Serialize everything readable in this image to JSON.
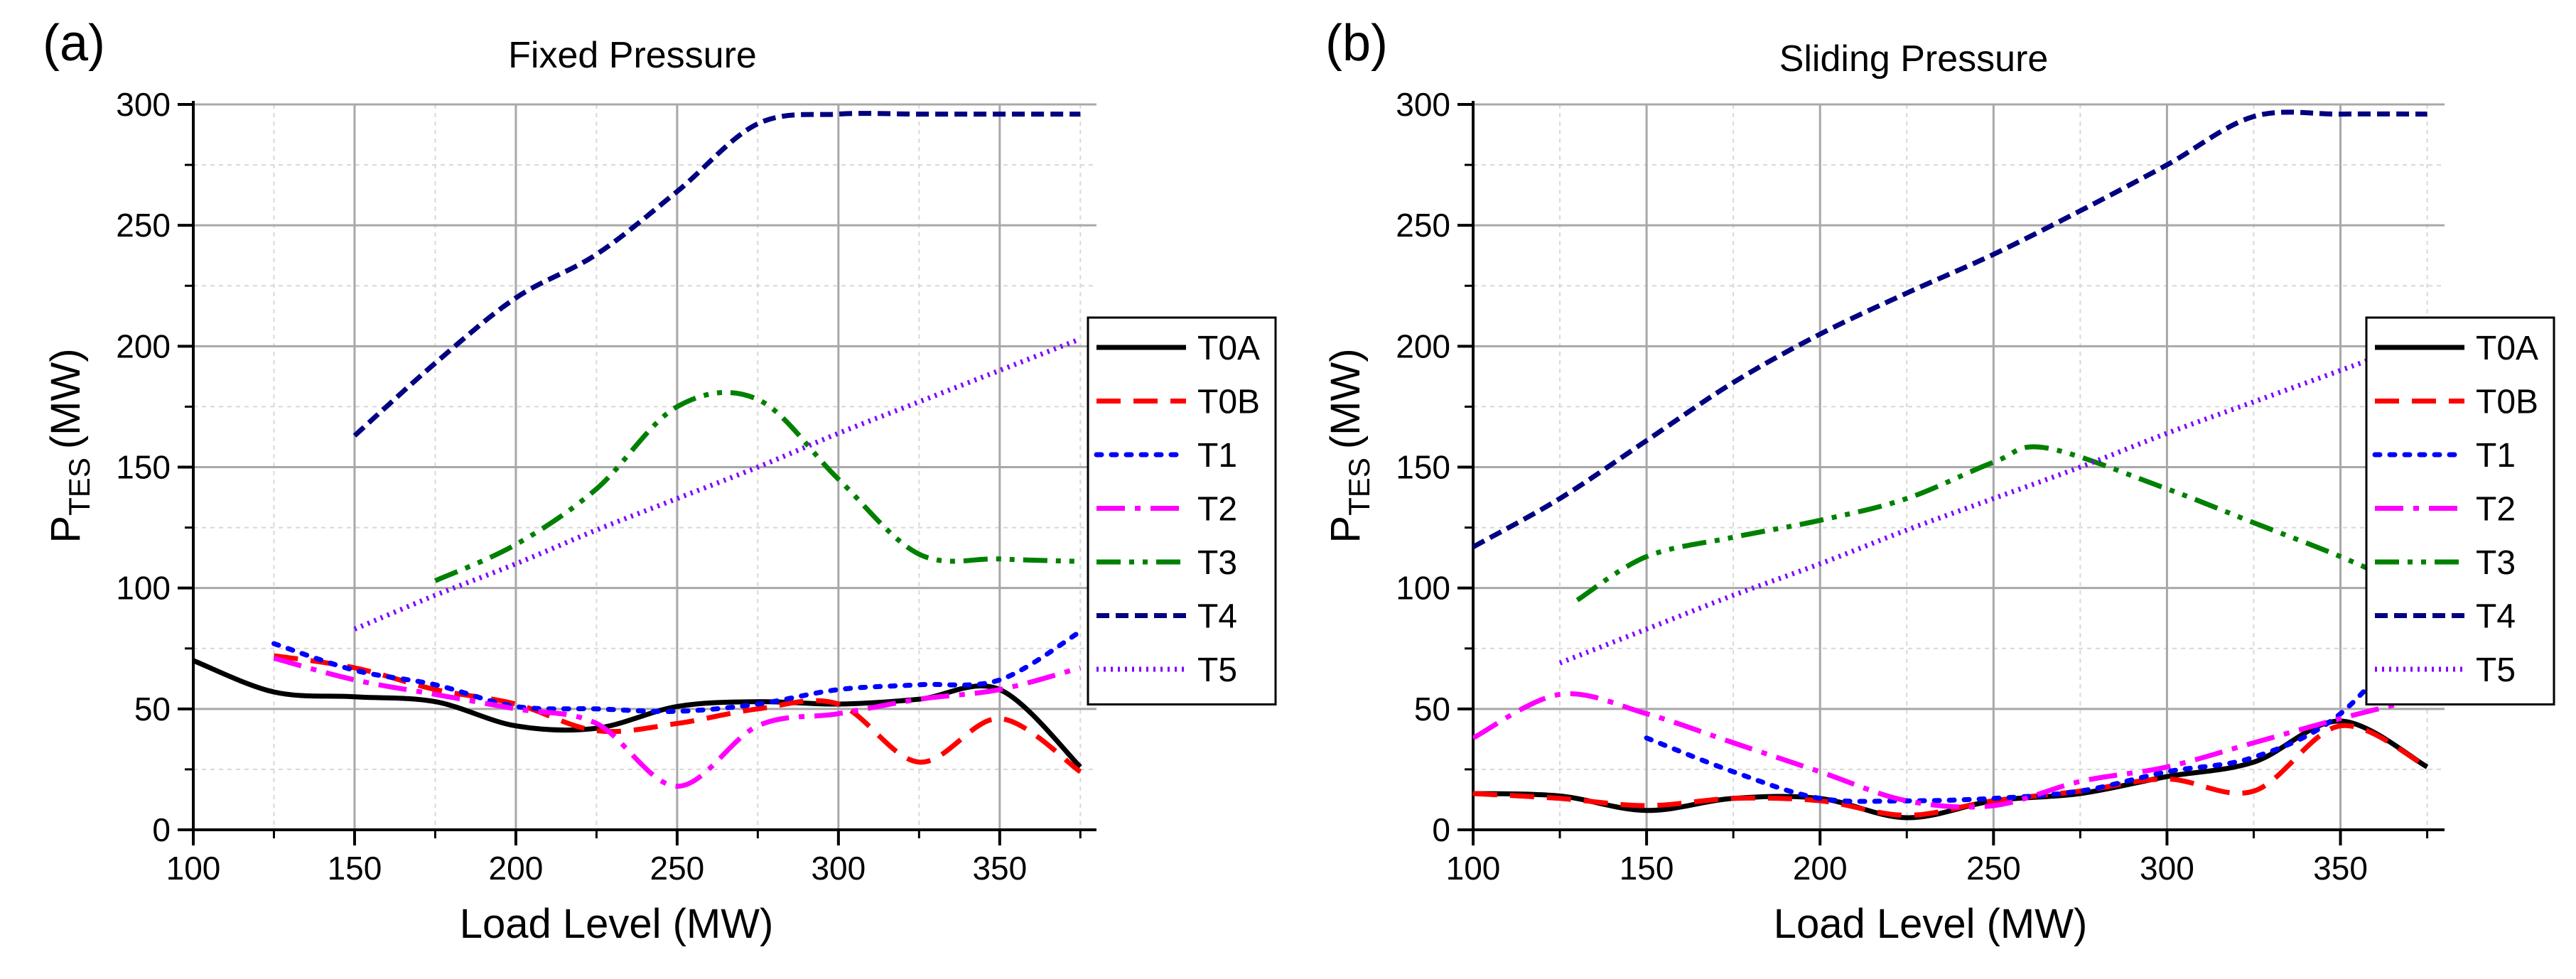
{
  "colors": {
    "T0A": "#000000",
    "T0B": "#ff0000",
    "T1": "#0000ff",
    "T2": "#ff00ff",
    "T3": "#008000",
    "T4": "#000080",
    "T5": "#8000ff",
    "grid_major": "#a8a8a8",
    "grid_minor": "#d8d8d8"
  },
  "chart_data": [
    {
      "type": "line",
      "panel_label": "(a)",
      "title": "Fixed Pressure",
      "xlabel": "Load Level (MW)",
      "ylabel_main": "P",
      "ylabel_sub": "TES",
      "ylabel_unit": "(MW)",
      "xlim": [
        100,
        380
      ],
      "ylim": [
        0,
        300
      ],
      "xticks": [
        100,
        150,
        200,
        250,
        300,
        350
      ],
      "yticks": [
        0,
        50,
        100,
        150,
        200,
        250,
        300
      ],
      "grid": true,
      "legend_position": "right",
      "series": [
        {
          "name": "T0A",
          "x": [
            100,
            125,
            150,
            175,
            200,
            225,
            250,
            275,
            300,
            325,
            350,
            375
          ],
          "y": [
            70,
            57,
            55,
            53,
            43,
            42,
            51,
            53,
            52,
            54,
            58,
            26
          ]
        },
        {
          "name": "T0B",
          "x": [
            125,
            150,
            175,
            200,
            225,
            250,
            275,
            300,
            325,
            350,
            375
          ],
          "y": [
            72,
            67,
            58,
            52,
            41,
            44,
            50,
            52,
            28,
            46,
            24
          ]
        },
        {
          "name": "T1",
          "x": [
            125,
            150,
            175,
            200,
            225,
            250,
            275,
            300,
            325,
            350,
            375
          ],
          "y": [
            77,
            66,
            60,
            51,
            50,
            49,
            52,
            58,
            60,
            62,
            82
          ]
        },
        {
          "name": "T2",
          "x": [
            125,
            150,
            175,
            200,
            225,
            250,
            275,
            300,
            325,
            350,
            375
          ],
          "y": [
            71,
            62,
            56,
            50,
            44,
            18,
            43,
            48,
            54,
            58,
            67
          ]
        },
        {
          "name": "T3",
          "x": [
            175,
            200,
            225,
            250,
            275,
            300,
            325,
            350,
            375
          ],
          "y": [
            103,
            118,
            141,
            175,
            178,
            145,
            114,
            112,
            111
          ]
        },
        {
          "name": "T4",
          "x": [
            150,
            175,
            200,
            225,
            250,
            275,
            300,
            325,
            350,
            375
          ],
          "y": [
            163,
            193,
            220,
            238,
            264,
            292,
            296,
            296,
            296,
            296
          ]
        },
        {
          "name": "T5",
          "x": [
            150,
            175,
            200,
            225,
            250,
            275,
            300,
            325,
            350,
            375
          ],
          "y": [
            83,
            97,
            110,
            124,
            137,
            150,
            164,
            177,
            190,
            203
          ]
        }
      ]
    },
    {
      "type": "line",
      "panel_label": "(b)",
      "title": "Sliding Pressure",
      "xlabel": "Load Level (MW)",
      "ylabel_main": "P",
      "ylabel_sub": "TES",
      "ylabel_unit": "(MW)",
      "xlim": [
        100,
        380
      ],
      "ylim": [
        0,
        300
      ],
      "xticks": [
        100,
        150,
        200,
        250,
        300,
        350
      ],
      "yticks": [
        0,
        50,
        100,
        150,
        200,
        250,
        300
      ],
      "grid": true,
      "legend_position": "right",
      "series": [
        {
          "name": "T0A",
          "x": [
            100,
            125,
            150,
            175,
            200,
            225,
            250,
            275,
            300,
            325,
            350,
            375
          ],
          "y": [
            15,
            14,
            8,
            13,
            13,
            5,
            12,
            15,
            22,
            28,
            45,
            26
          ]
        },
        {
          "name": "T0B",
          "x": [
            100,
            125,
            150,
            175,
            200,
            225,
            250,
            275,
            300,
            325,
            350,
            375
          ],
          "y": [
            15,
            13,
            10,
            13,
            12,
            6,
            12,
            16,
            21,
            16,
            43,
            26
          ]
        },
        {
          "name": "T1",
          "x": [
            150,
            175,
            200,
            225,
            250,
            275,
            300,
            325,
            350,
            375
          ],
          "y": [
            38,
            24,
            13,
            12,
            13,
            16,
            24,
            30,
            48,
            88
          ]
        },
        {
          "name": "T2",
          "x": [
            100,
            125,
            150,
            175,
            200,
            225,
            250,
            275,
            300,
            325,
            350,
            375
          ],
          "y": [
            38,
            56,
            48,
            36,
            24,
            12,
            10,
            20,
            26,
            36,
            46,
            55
          ]
        },
        {
          "name": "T3",
          "x": [
            130,
            150,
            175,
            200,
            225,
            250,
            265,
            300,
            325,
            350,
            375
          ],
          "y": [
            95,
            113,
            121,
            128,
            137,
            152,
            158,
            141,
            127,
            113,
            97
          ]
        },
        {
          "name": "T4",
          "x": [
            100,
            125,
            150,
            175,
            200,
            225,
            250,
            275,
            300,
            325,
            350,
            375
          ],
          "y": [
            117,
            137,
            161,
            185,
            205,
            222,
            238,
            256,
            275,
            295,
            296,
            296
          ]
        },
        {
          "name": "T5",
          "x": [
            125,
            150,
            175,
            200,
            225,
            250,
            275,
            300,
            325,
            350,
            375
          ],
          "y": [
            69,
            83,
            97,
            110,
            124,
            137,
            150,
            164,
            177,
            190,
            203
          ]
        }
      ]
    }
  ]
}
